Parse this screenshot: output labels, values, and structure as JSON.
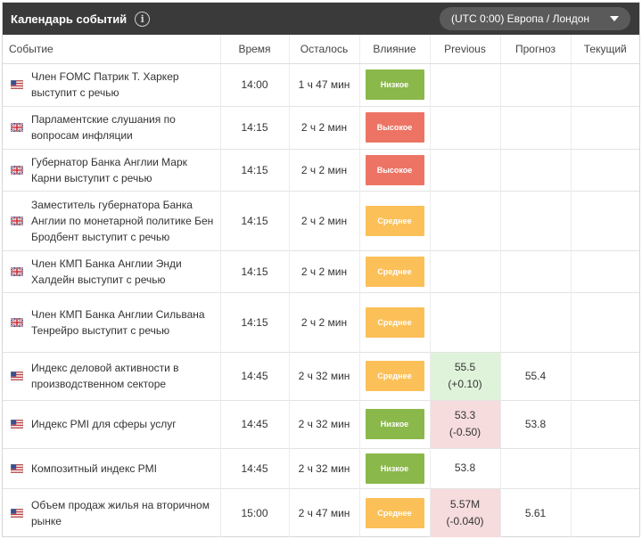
{
  "header": {
    "title": "Календарь событий",
    "info_glyph": "i",
    "timezone": "(UTC 0:00) Европа / Лондон"
  },
  "columns": [
    "Событие",
    "Время",
    "Осталось",
    "Влияние",
    "Previous",
    "Прогноз",
    "Текущий"
  ],
  "rows": [
    {
      "flag": "us-flag-icon",
      "event": "Член FOMC Патрик Т. Харкер выступит с речью",
      "time": "14:00",
      "remaining": "1 ч 47 мин",
      "impact": "Низкое",
      "impact_level": "low",
      "previous": "",
      "previous_change": "",
      "previous_trend": "",
      "forecast": "",
      "actual": ""
    },
    {
      "flag": "uk-flag-icon",
      "event": "Парламентские слушания по вопросам инфляции",
      "time": "14:15",
      "remaining": "2 ч 2 мин",
      "impact": "Высокое",
      "impact_level": "high",
      "previous": "",
      "previous_change": "",
      "previous_trend": "",
      "forecast": "",
      "actual": ""
    },
    {
      "flag": "uk-flag-icon",
      "event": "Губернатор Банка Англии Марк Карни выступит с речью",
      "time": "14:15",
      "remaining": "2 ч 2 мин",
      "impact": "Высокое",
      "impact_level": "high",
      "previous": "",
      "previous_change": "",
      "previous_trend": "",
      "forecast": "",
      "actual": ""
    },
    {
      "flag": "uk-flag-icon",
      "event": "Заместитель губернатора Банка Англии по монетарной политике Бен Бродбент выступит с речью",
      "time": "14:15",
      "remaining": "2 ч 2 мин",
      "impact": "Среднее",
      "impact_level": "medium",
      "previous": "",
      "previous_change": "",
      "previous_trend": "",
      "forecast": "",
      "actual": ""
    },
    {
      "flag": "uk-flag-icon",
      "event": "Член КМП Банка Англии Энди Халдейн выступит с речью",
      "time": "14:15",
      "remaining": "2 ч 2 мин",
      "impact": "Среднее",
      "impact_level": "medium",
      "previous": "",
      "previous_change": "",
      "previous_trend": "",
      "forecast": "",
      "actual": ""
    },
    {
      "flag": "uk-flag-icon",
      "event": "Член КМП Банка Англии Сильвана Тенрейро выступит с речью",
      "time": "14:15",
      "remaining": "2 ч 2 мин",
      "impact": "Среднее",
      "impact_level": "medium",
      "previous": "",
      "previous_change": "",
      "previous_trend": "",
      "forecast": "",
      "actual": ""
    },
    {
      "flag": "us-flag-icon",
      "event": "Индекс деловой активности в производственном секторе",
      "time": "14:45",
      "remaining": "2 ч 32 мин",
      "impact": "Среднее",
      "impact_level": "medium",
      "previous": "55.5",
      "previous_change": "(+0.10)",
      "previous_trend": "up",
      "forecast": "55.4",
      "actual": ""
    },
    {
      "flag": "us-flag-icon",
      "event": "Индекс PMI для сферы услуг",
      "time": "14:45",
      "remaining": "2 ч 32 мин",
      "impact": "Низкое",
      "impact_level": "low",
      "previous": "53.3",
      "previous_change": "(-0.50)",
      "previous_trend": "down",
      "forecast": "53.8",
      "actual": ""
    },
    {
      "flag": "us-flag-icon",
      "event": "Композитный индекс PMI",
      "time": "14:45",
      "remaining": "2 ч 32 мин",
      "impact": "Низкое",
      "impact_level": "low",
      "previous": "53.8",
      "previous_change": "",
      "previous_trend": "",
      "forecast": "",
      "actual": ""
    },
    {
      "flag": "us-flag-icon",
      "event": "Объем продаж жилья на вторичном рынке",
      "time": "15:00",
      "remaining": "2 ч 47 мин",
      "impact": "Среднее",
      "impact_level": "medium",
      "previous": "5.57M",
      "previous_change": "(-0.040)",
      "previous_trend": "down",
      "forecast": "5.61",
      "actual": ""
    }
  ],
  "colors": {
    "header_bg": "#3a3a3a",
    "impact_low": "#8ab84a",
    "impact_high": "#ed7464",
    "impact_medium": "#fbc058",
    "previous_up_bg": "#dff3da",
    "previous_down_bg": "#f6dcdc"
  }
}
